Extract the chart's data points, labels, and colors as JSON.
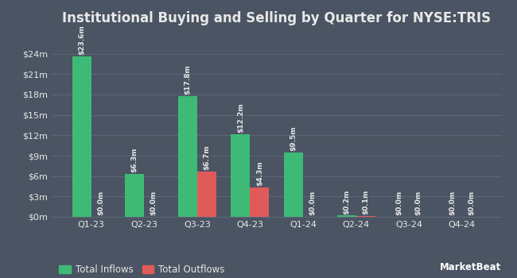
{
  "title": "Institutional Buying and Selling by Quarter for NYSE:TRIS",
  "quarters": [
    "Q1-23",
    "Q2-23",
    "Q3-23",
    "Q4-23",
    "Q1-24",
    "Q2-24",
    "Q3-24",
    "Q4-24"
  ],
  "inflows": [
    23.6,
    6.3,
    17.8,
    12.2,
    9.5,
    0.2,
    0.0,
    0.0
  ],
  "outflows": [
    0.0,
    0.0,
    6.7,
    4.3,
    0.0,
    0.1,
    0.0,
    0.0
  ],
  "inflow_labels": [
    "$23.6m",
    "$6.3m",
    "$17.8m",
    "$12.2m",
    "$9.5m",
    "$0.2m",
    "$0.0m",
    "$0.0m"
  ],
  "outflow_labels": [
    "$0.0m",
    "$0.0m",
    "$6.7m",
    "$4.3m",
    "$0.0m",
    "$0.1m",
    "$0.0m",
    "$0.0m"
  ],
  "inflow_color": "#3dba75",
  "outflow_color": "#e05a5a",
  "background_color": "#4a5462",
  "grid_color": "#5c6878",
  "text_color": "#e8e8e8",
  "ytick_labels": [
    "$0m",
    "$3m",
    "$6m",
    "$9m",
    "$12m",
    "$15m",
    "$18m",
    "$21m",
    "$24m"
  ],
  "ytick_values": [
    0,
    3,
    6,
    9,
    12,
    15,
    18,
    21,
    24
  ],
  "ylim": [
    0,
    27
  ],
  "bar_width": 0.36,
  "legend_inflow": "Total Inflows",
  "legend_outflow": "Total Outflows",
  "title_fontsize": 12,
  "label_fontsize": 6.5,
  "tick_fontsize": 8,
  "legend_fontsize": 8.5
}
